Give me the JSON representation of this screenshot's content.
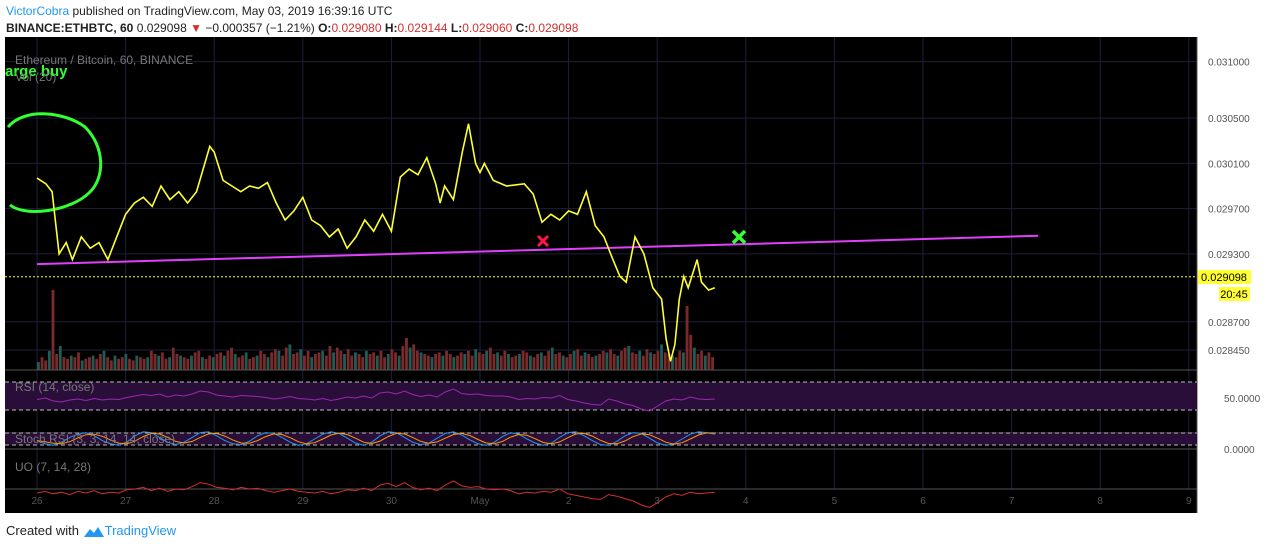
{
  "header": {
    "author": "VictorCobra",
    "published_text": "published on TradingView.com, May 03, 2019 16:39:16 UTC",
    "symbol": "BINANCE:ETHBTC, 60",
    "last": "0.029098",
    "change": "−0.000357 (−1.21%)",
    "o_label": "O:",
    "o_value": "0.029080",
    "h_label": "H:",
    "h_value": "0.029144",
    "l_label": "L:",
    "l_value": "0.029060",
    "c_label": "C:",
    "c_value": "0.029098"
  },
  "panes": {
    "main_title": "Ethereum / Bitcoin, 60, BINANCE",
    "volume_label": "Vol (20)",
    "annotation_text": "arge buy",
    "rsi_label": "RSI (14, close)",
    "rsi_axis": "50.0000",
    "stoch_label": "Stoch RSI (3, 3, 14, 14, close)",
    "stoch_axis": "0.0000",
    "uo_label": "UO (7, 14, 28)"
  },
  "price_badge": {
    "price": "0.029098",
    "countdown": "20:45"
  },
  "footer": {
    "created_with": "Created with",
    "brand": "TradingView"
  },
  "colors": {
    "background": "#000000",
    "price_line": "#ffff33",
    "trend_line": "#e040fb",
    "up_volume": "#1e5c55",
    "down_volume": "#7a2a2a",
    "rsi": "#9c27b0",
    "stoch_k": "#2196f3",
    "stoch_d": "#ff9800",
    "uo": "#d32f2f",
    "author": "#2196f3",
    "negative": "#d32f2f",
    "circle": "#33ff33",
    "x_red": "#ff1744",
    "x_green": "#33ff33"
  },
  "chart_data": {
    "type": "line",
    "ylim": [
      0.0283,
      0.0312
    ],
    "y_ticks": [
      "0.031000",
      "0.030500",
      "0.030100",
      "0.029700",
      "0.029300",
      "0.028700",
      "0.028450"
    ],
    "y_tick_values": [
      0.031,
      0.0305,
      0.0301,
      0.0297,
      0.0293,
      0.0287,
      0.02845
    ],
    "x_ticks": [
      "26",
      "27",
      "28",
      "29",
      "30",
      "May",
      "2",
      "3",
      "4",
      "5",
      "6",
      "7",
      "8",
      "9"
    ],
    "price_series": [
      [
        0.0,
        0.02997
      ],
      [
        0.1,
        0.02992
      ],
      [
        0.17,
        0.02985
      ],
      [
        0.25,
        0.0293
      ],
      [
        0.33,
        0.0294
      ],
      [
        0.4,
        0.02925
      ],
      [
        0.5,
        0.02945
      ],
      [
        0.6,
        0.02935
      ],
      [
        0.7,
        0.0294
      ],
      [
        0.8,
        0.02925
      ],
      [
        0.9,
        0.02945
      ],
      [
        1.0,
        0.02965
      ],
      [
        1.1,
        0.02975
      ],
      [
        1.2,
        0.0298
      ],
      [
        1.3,
        0.02972
      ],
      [
        1.4,
        0.0299
      ],
      [
        1.5,
        0.02978
      ],
      [
        1.6,
        0.02985
      ],
      [
        1.7,
        0.02975
      ],
      [
        1.8,
        0.02985
      ],
      [
        1.95,
        0.03025
      ],
      [
        2.0,
        0.0302
      ],
      [
        2.1,
        0.02995
      ],
      [
        2.2,
        0.0299
      ],
      [
        2.3,
        0.02985
      ],
      [
        2.4,
        0.0299
      ],
      [
        2.5,
        0.02988
      ],
      [
        2.6,
        0.02993
      ],
      [
        2.7,
        0.02975
      ],
      [
        2.8,
        0.0296
      ],
      [
        2.9,
        0.02968
      ],
      [
        3.0,
        0.0298
      ],
      [
        3.1,
        0.0296
      ],
      [
        3.2,
        0.02955
      ],
      [
        3.3,
        0.02945
      ],
      [
        3.4,
        0.02952
      ],
      [
        3.5,
        0.02935
      ],
      [
        3.6,
        0.02945
      ],
      [
        3.7,
        0.0296
      ],
      [
        3.8,
        0.0295
      ],
      [
        3.9,
        0.02965
      ],
      [
        4.0,
        0.0295
      ],
      [
        4.1,
        0.02998
      ],
      [
        4.2,
        0.03005
      ],
      [
        4.3,
        0.03
      ],
      [
        4.4,
        0.03015
      ],
      [
        4.5,
        0.02992
      ],
      [
        4.55,
        0.02975
      ],
      [
        4.6,
        0.0299
      ],
      [
        4.7,
        0.02978
      ],
      [
        4.8,
        0.0302
      ],
      [
        4.87,
        0.03045
      ],
      [
        4.95,
        0.0301
      ],
      [
        5.0,
        0.03002
      ],
      [
        5.05,
        0.0301
      ],
      [
        5.15,
        0.02995
      ],
      [
        5.3,
        0.0299
      ],
      [
        5.5,
        0.02992
      ],
      [
        5.6,
        0.02983
      ],
      [
        5.7,
        0.02958
      ],
      [
        5.8,
        0.02965
      ],
      [
        5.9,
        0.0296
      ],
      [
        6.0,
        0.02968
      ],
      [
        6.1,
        0.02965
      ],
      [
        6.2,
        0.02985
      ],
      [
        6.3,
        0.02955
      ],
      [
        6.4,
        0.02945
      ],
      [
        6.5,
        0.02925
      ],
      [
        6.58,
        0.0291
      ],
      [
        6.65,
        0.02905
      ],
      [
        6.75,
        0.02945
      ],
      [
        6.85,
        0.0293
      ],
      [
        6.95,
        0.029
      ],
      [
        7.05,
        0.0289
      ],
      [
        7.1,
        0.02855
      ],
      [
        7.15,
        0.02835
      ],
      [
        7.2,
        0.0285
      ],
      [
        7.25,
        0.0289
      ],
      [
        7.3,
        0.0291
      ],
      [
        7.35,
        0.029
      ],
      [
        7.45,
        0.02925
      ],
      [
        7.5,
        0.02905
      ],
      [
        7.58,
        0.02898
      ],
      [
        7.65,
        0.029
      ]
    ],
    "trend_line": [
      [
        0.0,
        0.02921
      ],
      [
        11.3,
        0.02946
      ]
    ],
    "current_price": 0.029098,
    "volume": [
      5,
      8,
      6,
      12,
      50,
      10,
      15,
      8,
      7,
      9,
      8,
      11,
      6,
      7,
      8,
      9,
      7,
      10,
      12,
      8,
      6,
      9,
      7,
      8,
      10,
      7,
      6,
      9,
      8,
      7,
      8,
      12,
      10,
      9,
      11,
      7,
      8,
      14,
      10,
      9,
      8,
      7,
      9,
      11,
      12,
      8,
      7,
      9,
      8,
      10,
      11,
      9,
      12,
      14,
      10,
      8,
      9,
      11,
      7,
      8,
      9,
      12,
      10,
      8,
      11,
      13,
      12,
      9,
      14,
      16,
      10,
      11,
      13,
      9,
      12,
      8,
      10,
      11,
      12,
      9,
      15,
      11,
      14,
      12,
      10,
      13,
      9,
      11,
      10,
      8,
      12,
      10,
      11,
      9,
      12,
      8,
      10,
      13,
      11,
      9,
      15,
      20,
      14,
      16,
      12,
      11,
      10,
      9,
      8,
      10,
      11,
      9,
      12,
      10,
      8,
      9,
      11,
      10,
      12,
      9,
      13,
      11,
      10,
      12,
      14,
      10,
      11,
      9,
      12,
      10,
      8,
      9,
      10,
      12,
      11,
      9,
      8,
      10,
      11,
      9,
      12,
      14,
      10,
      11,
      9,
      8,
      10,
      12,
      13,
      9,
      11,
      10,
      8,
      9,
      10,
      12,
      11,
      13,
      10,
      9,
      12,
      14,
      15,
      11,
      10,
      12,
      9,
      13,
      11,
      10,
      12,
      16,
      11,
      10,
      9,
      8,
      12,
      11,
      40,
      22,
      14,
      10,
      12,
      9,
      11,
      8
    ],
    "rsi": [
      45,
      48,
      42,
      40,
      44,
      46,
      43,
      47,
      44,
      46,
      45,
      49,
      52,
      55,
      53,
      56,
      50,
      54,
      52,
      56,
      62,
      60,
      54,
      52,
      50,
      53,
      52,
      51,
      49,
      46,
      48,
      51,
      47,
      46,
      44,
      47,
      43,
      46,
      50,
      48,
      52,
      48,
      58,
      60,
      56,
      62,
      55,
      51,
      54,
      50,
      60,
      66,
      57,
      55,
      56,
      53,
      52,
      52,
      50,
      45,
      47,
      46,
      49,
      48,
      53,
      45,
      42,
      38,
      35,
      34,
      46,
      42,
      36,
      33,
      26,
      22,
      32,
      42,
      46,
      44,
      50,
      46,
      45,
      46
    ],
    "stoch_k": [
      40,
      20,
      10,
      30,
      60,
      80,
      90,
      70,
      40,
      20,
      10,
      30,
      70,
      95,
      90,
      60,
      30,
      15,
      30,
      60,
      90,
      95,
      70,
      40,
      20,
      15,
      35,
      70,
      90,
      85,
      60,
      30,
      10,
      20,
      50,
      80,
      95,
      85,
      55,
      25,
      10,
      30,
      70,
      95,
      90,
      60,
      30,
      15,
      25,
      55,
      85,
      95,
      75,
      45,
      20,
      10,
      30,
      65,
      90,
      80,
      50,
      25,
      10,
      25,
      60,
      90,
      95,
      70,
      40,
      15,
      10,
      35,
      70,
      90,
      85,
      55,
      25,
      10,
      20,
      50,
      80,
      95,
      90,
      80
    ],
    "uo": [
      45,
      47,
      44,
      46,
      43,
      47,
      45,
      48,
      44,
      46,
      45,
      49,
      50,
      52,
      48,
      51,
      47,
      50,
      49,
      53,
      58,
      56,
      52,
      51,
      49,
      52,
      50,
      51,
      48,
      46,
      48,
      50,
      47,
      46,
      45,
      47,
      44,
      46,
      49,
      48,
      51,
      48,
      55,
      57,
      53,
      58,
      52,
      49,
      51,
      48,
      55,
      60,
      54,
      52,
      53,
      50,
      49,
      50,
      48,
      44,
      46,
      45,
      47,
      46,
      50,
      44,
      42,
      40,
      38,
      37,
      43,
      41,
      38,
      35,
      30,
      27,
      33,
      40,
      44,
      42,
      46,
      44,
      45,
      46
    ]
  }
}
